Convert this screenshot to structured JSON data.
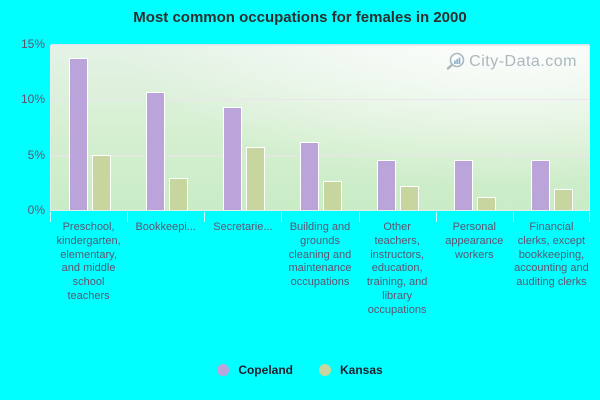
{
  "title": "Most common occupations for females in 2000",
  "watermark": {
    "text": "City-Data.com"
  },
  "chart_data": {
    "type": "bar",
    "title": "Most common occupations for females in 2000",
    "categories": [
      "Preschool, kindergarten, elementary, and middle school teachers",
      "Bookkeepi...",
      "Secretarie...",
      "Building and grounds cleaning and maintenance occupations",
      "Other teachers, instructors, education, training, and library occupations",
      "Personal appearance workers",
      "Financial clerks, except bookkeeping, accounting and auditing clerks"
    ],
    "series": [
      {
        "name": "Copeland",
        "color": "#bba4da",
        "values": [
          13.7,
          10.7,
          9.3,
          6.1,
          4.5,
          4.5,
          4.5
        ]
      },
      {
        "name": "Kansas",
        "color": "#c7d69f",
        "values": [
          5.0,
          2.9,
          5.7,
          2.6,
          2.2,
          1.2,
          1.9
        ]
      }
    ],
    "xlabel": "",
    "ylabel": "",
    "ylim": [
      0,
      15
    ],
    "yticks": [
      0,
      5,
      10,
      15
    ],
    "ytick_labels": [
      "0%",
      "5%",
      "10%",
      "15%"
    ],
    "grid": true,
    "legend_position": "bottom",
    "background": "#00ffff"
  }
}
